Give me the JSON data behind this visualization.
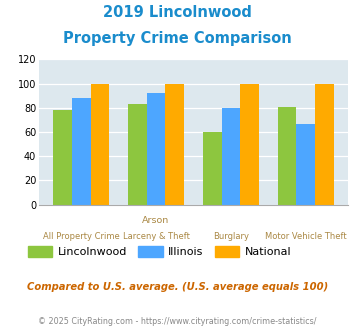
{
  "title_line1": "2019 Lincolnwood",
  "title_line2": "Property Crime Comparison",
  "cat_labels_top": [
    "",
    "Arson",
    "",
    ""
  ],
  "cat_labels_bottom": [
    "All Property Crime",
    "Larceny & Theft",
    "Burglary",
    "Motor Vehicle Theft"
  ],
  "lincolnwood": [
    78,
    83,
    60,
    81
  ],
  "illinois": [
    88,
    92,
    80,
    67
  ],
  "national": [
    100,
    100,
    100,
    100
  ],
  "color_lincolnwood": "#8dc63f",
  "color_illinois": "#4da6ff",
  "color_national": "#ffaa00",
  "color_title": "#1a8ccc",
  "color_bg": "#dde8ee",
  "color_xlabel_top": "#aa8844",
  "color_xlabel_bot": "#aa8844",
  "ylim": [
    0,
    120
  ],
  "yticks": [
    0,
    20,
    40,
    60,
    80,
    100,
    120
  ],
  "legend_labels": [
    "Lincolnwood",
    "Illinois",
    "National"
  ],
  "footnote1": "Compared to U.S. average. (U.S. average equals 100)",
  "footnote2": "© 2025 CityRating.com - https://www.cityrating.com/crime-statistics/",
  "bar_width": 0.25
}
